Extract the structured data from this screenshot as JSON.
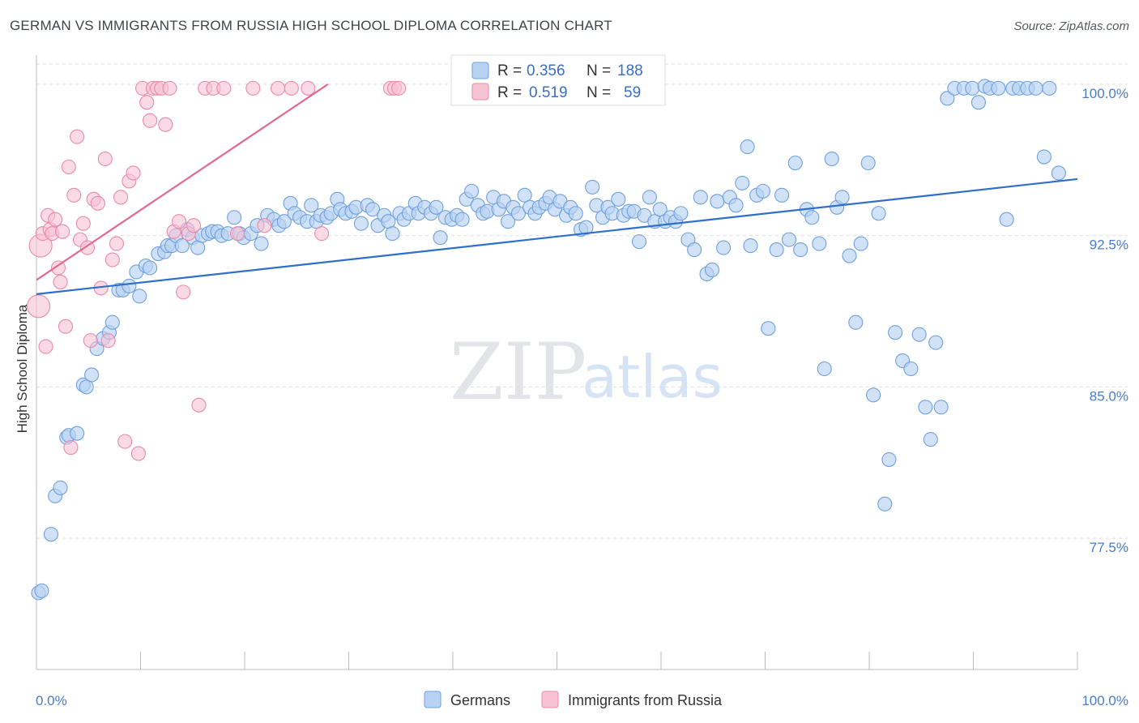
{
  "title": "GERMAN VS IMMIGRANTS FROM RUSSIA HIGH SCHOOL DIPLOMA CORRELATION CHART",
  "source": "Source: ZipAtlas.com",
  "colors": {
    "blue": "#6fa0dc",
    "blue_fill": "#b8d2f3",
    "blue_line": "#2f6fcc",
    "pink": "#e98aa8",
    "pink_fill": "#f7c2d3",
    "pink_line": "#e06a92",
    "tick_text": "#4a7cc9"
  },
  "legend": {
    "r_label": "R =",
    "n_label": "N =",
    "series": [
      {
        "name": "Germans",
        "r": "0.356",
        "n": "188"
      },
      {
        "name": "Immigrants from Russia",
        "r": "0.519",
        "n": "59"
      }
    ]
  },
  "watermark": {
    "zip": "ZIP",
    "atlas": "atlas"
  },
  "chart_data": {
    "type": "scatter",
    "title": "GERMAN VS IMMIGRANTS FROM RUSSIA HIGH SCHOOL DIPLOMA CORRELATION CHART",
    "xlabel": "",
    "ylabel": "High School Diploma",
    "xlim": [
      0,
      100
    ],
    "ylim": [
      71.0,
      101.0
    ],
    "x_tick_labels": [
      "0.0%",
      "100.0%"
    ],
    "y_ticks": [
      77.5,
      85.0,
      92.5,
      100.0
    ],
    "y_tick_labels": [
      "77.5%",
      "85.0%",
      "92.5%",
      "100.0%"
    ],
    "grid": true,
    "series": [
      {
        "name": "Germans",
        "trend": {
          "x": [
            0,
            100
          ],
          "y": [
            89.6,
            95.3
          ]
        },
        "points": [
          [
            0.2,
            74.8
          ],
          [
            0.5,
            74.9
          ],
          [
            1.4,
            77.7
          ],
          [
            1.8,
            79.6
          ],
          [
            2.3,
            80.0
          ],
          [
            2.9,
            82.5
          ],
          [
            3.1,
            82.6
          ],
          [
            3.9,
            82.7
          ],
          [
            4.5,
            85.1
          ],
          [
            4.8,
            85.0
          ],
          [
            5.3,
            85.6
          ],
          [
            5.8,
            86.9
          ],
          [
            6.4,
            87.4
          ],
          [
            7.0,
            87.7
          ],
          [
            7.3,
            88.2
          ],
          [
            7.9,
            89.8
          ],
          [
            8.3,
            89.8
          ],
          [
            8.9,
            90.0
          ],
          [
            9.6,
            90.7
          ],
          [
            9.9,
            89.5
          ],
          [
            10.5,
            91.0
          ],
          [
            10.9,
            90.9
          ],
          [
            11.7,
            91.6
          ],
          [
            12.3,
            91.7
          ],
          [
            12.6,
            92.0
          ],
          [
            13.0,
            92.0
          ],
          [
            13.4,
            92.5
          ],
          [
            14.0,
            92.0
          ],
          [
            14.5,
            92.8
          ],
          [
            15.0,
            92.4
          ],
          [
            15.5,
            91.9
          ],
          [
            15.9,
            92.5
          ],
          [
            16.5,
            92.6
          ],
          [
            16.9,
            92.7
          ],
          [
            17.4,
            92.7
          ],
          [
            17.8,
            92.5
          ],
          [
            18.4,
            92.6
          ],
          [
            19.0,
            93.4
          ],
          [
            19.5,
            92.6
          ],
          [
            19.9,
            92.4
          ],
          [
            20.6,
            92.6
          ],
          [
            21.2,
            93.0
          ],
          [
            21.6,
            92.1
          ],
          [
            22.2,
            93.5
          ],
          [
            22.8,
            93.3
          ],
          [
            23.3,
            93.0
          ],
          [
            23.8,
            93.2
          ],
          [
            24.4,
            94.1
          ],
          [
            24.8,
            93.6
          ],
          [
            25.3,
            93.4
          ],
          [
            26.0,
            93.2
          ],
          [
            26.4,
            94.0
          ],
          [
            26.9,
            93.2
          ],
          [
            27.3,
            93.5
          ],
          [
            27.9,
            93.4
          ],
          [
            28.3,
            93.6
          ],
          [
            28.9,
            94.3
          ],
          [
            29.2,
            93.8
          ],
          [
            29.7,
            93.6
          ],
          [
            30.3,
            93.7
          ],
          [
            30.7,
            93.9
          ],
          [
            31.2,
            93.1
          ],
          [
            31.8,
            94.0
          ],
          [
            32.3,
            93.8
          ],
          [
            32.8,
            93.0
          ],
          [
            33.4,
            93.5
          ],
          [
            33.8,
            93.2
          ],
          [
            34.2,
            92.6
          ],
          [
            34.9,
            93.6
          ],
          [
            35.3,
            93.3
          ],
          [
            35.8,
            93.6
          ],
          [
            36.4,
            94.1
          ],
          [
            36.7,
            93.6
          ],
          [
            37.3,
            93.9
          ],
          [
            37.9,
            93.6
          ],
          [
            38.4,
            93.9
          ],
          [
            38.8,
            92.4
          ],
          [
            39.3,
            93.4
          ],
          [
            39.9,
            93.3
          ],
          [
            40.4,
            93.5
          ],
          [
            40.9,
            93.3
          ],
          [
            41.3,
            94.3
          ],
          [
            41.8,
            94.7
          ],
          [
            42.4,
            94.0
          ],
          [
            42.9,
            93.6
          ],
          [
            43.3,
            93.7
          ],
          [
            43.9,
            94.4
          ],
          [
            44.4,
            93.8
          ],
          [
            44.9,
            94.2
          ],
          [
            45.3,
            93.2
          ],
          [
            45.8,
            93.9
          ],
          [
            46.3,
            93.6
          ],
          [
            46.9,
            94.5
          ],
          [
            47.4,
            93.9
          ],
          [
            47.9,
            93.6
          ],
          [
            48.3,
            93.9
          ],
          [
            48.9,
            94.1
          ],
          [
            49.3,
            94.4
          ],
          [
            49.8,
            93.8
          ],
          [
            50.3,
            94.2
          ],
          [
            50.9,
            93.5
          ],
          [
            51.3,
            93.9
          ],
          [
            51.8,
            93.6
          ],
          [
            52.3,
            92.8
          ],
          [
            52.8,
            92.9
          ],
          [
            53.4,
            94.9
          ],
          [
            53.8,
            94.0
          ],
          [
            54.4,
            93.4
          ],
          [
            54.9,
            93.9
          ],
          [
            55.3,
            93.6
          ],
          [
            55.9,
            94.3
          ],
          [
            56.4,
            93.5
          ],
          [
            56.9,
            93.7
          ],
          [
            57.4,
            93.7
          ],
          [
            57.9,
            92.2
          ],
          [
            58.4,
            93.5
          ],
          [
            58.9,
            94.4
          ],
          [
            59.4,
            93.2
          ],
          [
            59.9,
            93.8
          ],
          [
            60.4,
            93.2
          ],
          [
            60.9,
            93.4
          ],
          [
            61.4,
            93.2
          ],
          [
            61.9,
            93.6
          ],
          [
            62.6,
            92.3
          ],
          [
            63.2,
            91.8
          ],
          [
            63.8,
            94.4
          ],
          [
            64.4,
            90.6
          ],
          [
            64.9,
            90.8
          ],
          [
            65.4,
            94.2
          ],
          [
            66.0,
            91.9
          ],
          [
            66.6,
            94.4
          ],
          [
            67.2,
            94.0
          ],
          [
            67.8,
            95.1
          ],
          [
            68.3,
            96.9
          ],
          [
            68.6,
            92.0
          ],
          [
            69.2,
            94.5
          ],
          [
            69.8,
            94.7
          ],
          [
            70.3,
            87.9
          ],
          [
            71.1,
            91.8
          ],
          [
            71.6,
            94.5
          ],
          [
            72.3,
            92.3
          ],
          [
            72.9,
            96.1
          ],
          [
            73.4,
            91.8
          ],
          [
            74.0,
            93.8
          ],
          [
            74.5,
            93.4
          ],
          [
            75.2,
            92.1
          ],
          [
            75.7,
            85.9
          ],
          [
            76.4,
            96.3
          ],
          [
            76.9,
            93.9
          ],
          [
            77.4,
            94.4
          ],
          [
            78.1,
            91.5
          ],
          [
            78.7,
            88.2
          ],
          [
            79.2,
            92.1
          ],
          [
            79.9,
            96.1
          ],
          [
            80.4,
            84.6
          ],
          [
            80.9,
            93.6
          ],
          [
            81.5,
            79.2
          ],
          [
            81.9,
            81.4
          ],
          [
            82.5,
            87.7
          ],
          [
            83.2,
            86.3
          ],
          [
            84.0,
            85.9
          ],
          [
            84.8,
            87.6
          ],
          [
            85.4,
            84.0
          ],
          [
            85.9,
            82.4
          ],
          [
            86.4,
            87.2
          ],
          [
            86.9,
            84.0
          ],
          [
            87.5,
            99.3
          ],
          [
            88.2,
            99.8
          ],
          [
            89.1,
            99.8
          ],
          [
            89.9,
            99.8
          ],
          [
            90.5,
            99.1
          ],
          [
            91.1,
            99.9
          ],
          [
            91.6,
            99.8
          ],
          [
            92.4,
            99.8
          ],
          [
            93.2,
            93.3
          ],
          [
            93.8,
            99.8
          ],
          [
            94.4,
            99.8
          ],
          [
            95.2,
            99.8
          ],
          [
            96.0,
            99.8
          ],
          [
            96.8,
            96.4
          ],
          [
            97.3,
            99.8
          ],
          [
            98.2,
            95.6
          ]
        ]
      },
      {
        "name": "Immigrants from Russia",
        "trend": {
          "x": [
            0,
            28.0
          ],
          "y": [
            90.3,
            100.0
          ]
        },
        "points": [
          [
            0.2,
            89.0
          ],
          [
            0.4,
            92.0
          ],
          [
            0.6,
            92.6
          ],
          [
            0.9,
            87.0
          ],
          [
            1.1,
            93.5
          ],
          [
            1.3,
            92.8
          ],
          [
            1.5,
            92.6
          ],
          [
            1.8,
            93.3
          ],
          [
            2.1,
            90.9
          ],
          [
            2.3,
            90.2
          ],
          [
            2.5,
            92.7
          ],
          [
            2.8,
            88.0
          ],
          [
            3.1,
            95.9
          ],
          [
            3.3,
            82.0
          ],
          [
            3.6,
            94.5
          ],
          [
            3.9,
            97.4
          ],
          [
            4.2,
            92.3
          ],
          [
            4.5,
            93.1
          ],
          [
            4.9,
            91.9
          ],
          [
            5.2,
            87.3
          ],
          [
            5.5,
            94.3
          ],
          [
            5.9,
            94.1
          ],
          [
            6.2,
            89.9
          ],
          [
            6.6,
            96.3
          ],
          [
            6.9,
            87.3
          ],
          [
            7.3,
            91.3
          ],
          [
            7.7,
            92.1
          ],
          [
            8.1,
            94.4
          ],
          [
            8.5,
            82.3
          ],
          [
            8.9,
            95.2
          ],
          [
            9.3,
            95.6
          ],
          [
            9.8,
            81.7
          ],
          [
            10.2,
            99.8
          ],
          [
            10.6,
            99.1
          ],
          [
            10.9,
            98.2
          ],
          [
            11.2,
            99.8
          ],
          [
            11.6,
            99.8
          ],
          [
            12.0,
            99.8
          ],
          [
            12.4,
            98.0
          ],
          [
            12.8,
            99.8
          ],
          [
            13.2,
            92.7
          ],
          [
            13.7,
            93.2
          ],
          [
            14.1,
            89.7
          ],
          [
            14.6,
            92.6
          ],
          [
            15.1,
            93.0
          ],
          [
            15.6,
            84.1
          ],
          [
            16.2,
            99.8
          ],
          [
            17.0,
            99.8
          ],
          [
            18.0,
            99.8
          ],
          [
            19.3,
            92.6
          ],
          [
            20.8,
            99.8
          ],
          [
            21.9,
            93.0
          ],
          [
            23.2,
            99.8
          ],
          [
            24.5,
            99.8
          ],
          [
            26.1,
            99.8
          ],
          [
            27.4,
            92.6
          ],
          [
            34.0,
            99.8
          ],
          [
            34.4,
            99.8
          ],
          [
            34.8,
            99.8
          ]
        ]
      }
    ]
  }
}
